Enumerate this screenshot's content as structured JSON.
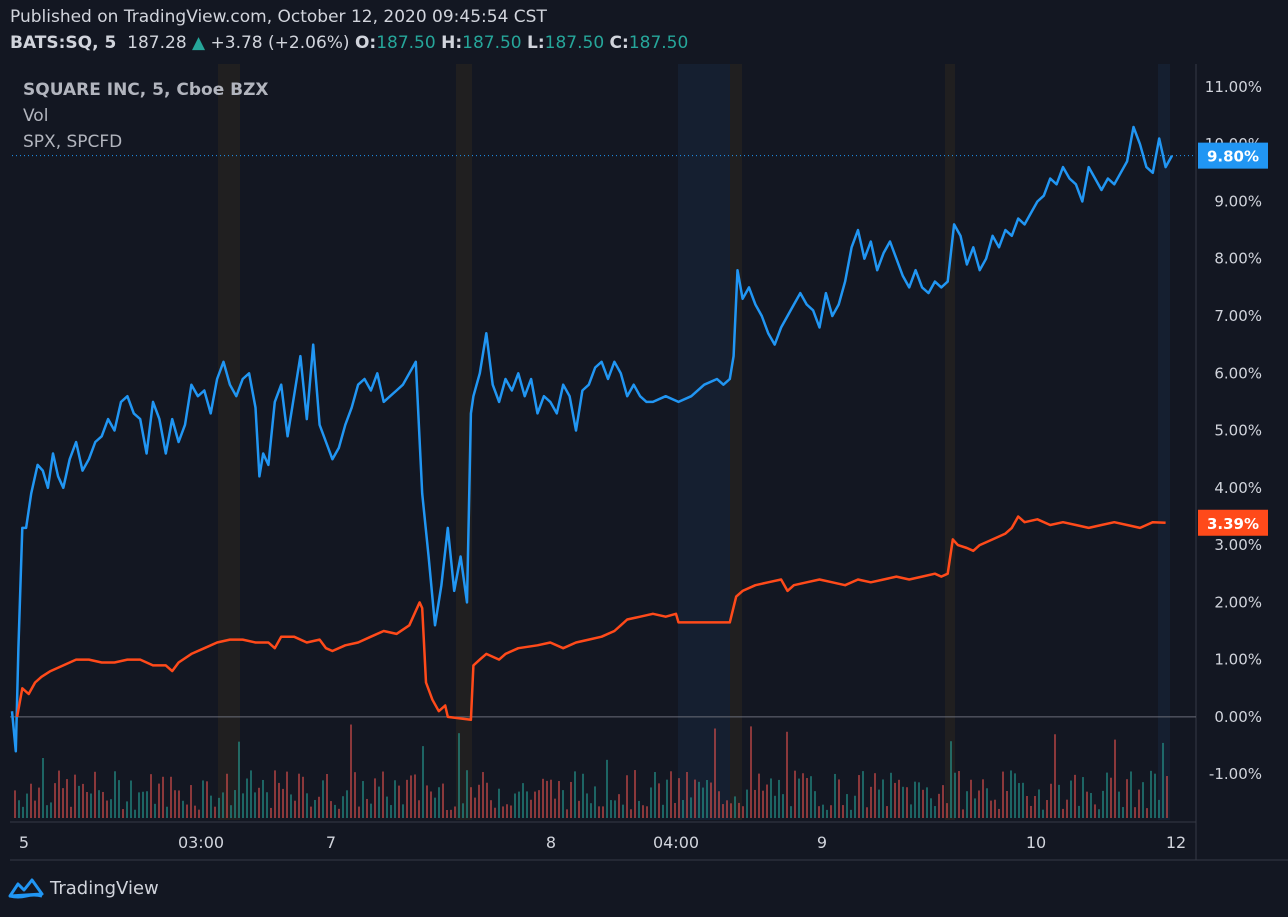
{
  "header": {
    "published": "Published on TradingView.com, October 12, 2020 09:45:54 CST",
    "symbol": "BATS:SQ, 5",
    "last": "187.28",
    "change": "+3.78 (+2.06%)",
    "o_label": "O:",
    "o": "187.50",
    "h_label": "H:",
    "h": "187.50",
    "l_label": "L:",
    "l": "187.50",
    "c_label": "C:",
    "c": "187.50"
  },
  "legend": {
    "main": "SQUARE INC, 5, Cboe BZX",
    "vol": "Vol",
    "compare": "SPX, SPCFD"
  },
  "footer": {
    "brand": "TradingView"
  },
  "colors": {
    "sq": "#2196f3",
    "spx": "#ff4a1a",
    "background": "#131722",
    "axis_text": "#d1d4dc",
    "up_vol": "#26a69a",
    "down_vol": "#ef5350"
  },
  "chart_data": {
    "type": "line",
    "y_unit": "%",
    "ylim": [
      -1.8,
      11.4
    ],
    "y_ticks": [
      "11.00%",
      "10.00%",
      "9.00%",
      "8.00%",
      "7.00%",
      "6.00%",
      "5.00%",
      "4.00%",
      "3.00%",
      "2.00%",
      "1.00%",
      "0.00%",
      "-1.00%"
    ],
    "x_ticks": [
      "5",
      "03:00",
      "7",
      "8",
      "04:00",
      "9",
      "10",
      "12"
    ],
    "last_value_labels": {
      "sq": "9.80%",
      "spx": "3.39%"
    },
    "series": [
      {
        "key": "sq",
        "points": [
          [
            0,
            0.1
          ],
          [
            0.3,
            -0.6
          ],
          [
            0.5,
            1.2
          ],
          [
            0.8,
            3.3
          ],
          [
            1.1,
            3.3
          ],
          [
            1.5,
            3.9
          ],
          [
            2,
            4.4
          ],
          [
            2.4,
            4.3
          ],
          [
            2.8,
            4.0
          ],
          [
            3.2,
            4.6
          ],
          [
            3.6,
            4.2
          ],
          [
            4,
            4.0
          ],
          [
            4.5,
            4.5
          ],
          [
            5,
            4.8
          ],
          [
            5.5,
            4.3
          ],
          [
            6,
            4.5
          ],
          [
            6.5,
            4.8
          ],
          [
            7,
            4.9
          ],
          [
            7.5,
            5.2
          ],
          [
            8,
            5.0
          ],
          [
            8.5,
            5.5
          ],
          [
            9,
            5.6
          ],
          [
            9.5,
            5.3
          ],
          [
            10,
            5.2
          ],
          [
            10.5,
            4.6
          ],
          [
            11,
            5.5
          ],
          [
            11.5,
            5.2
          ],
          [
            12,
            4.6
          ],
          [
            12.5,
            5.2
          ],
          [
            13,
            4.8
          ],
          [
            13.5,
            5.1
          ],
          [
            14,
            5.8
          ],
          [
            14.5,
            5.6
          ],
          [
            15,
            5.7
          ],
          [
            15.5,
            5.3
          ],
          [
            16,
            5.9
          ],
          [
            16.5,
            6.2
          ],
          [
            17,
            5.8
          ],
          [
            17.5,
            5.6
          ],
          [
            18,
            5.9
          ],
          [
            18.5,
            6.0
          ],
          [
            19,
            5.4
          ],
          [
            19.3,
            4.2
          ],
          [
            19.6,
            4.6
          ],
          [
            20,
            4.4
          ],
          [
            20.5,
            5.5
          ],
          [
            21,
            5.8
          ],
          [
            21.5,
            4.9
          ],
          [
            22,
            5.6
          ],
          [
            22.5,
            6.3
          ],
          [
            23,
            5.2
          ],
          [
            23.5,
            6.5
          ],
          [
            24,
            5.1
          ],
          [
            24.5,
            4.8
          ],
          [
            25,
            4.5
          ],
          [
            25.5,
            4.7
          ],
          [
            26,
            5.1
          ],
          [
            26.5,
            5.4
          ],
          [
            27,
            5.8
          ],
          [
            27.5,
            5.9
          ],
          [
            28,
            5.7
          ],
          [
            28.5,
            6.0
          ],
          [
            29,
            5.5
          ],
          [
            29.5,
            5.6
          ],
          [
            30,
            5.7
          ],
          [
            30.5,
            5.8
          ],
          [
            31,
            6.0
          ],
          [
            31.5,
            6.2
          ],
          [
            32,
            3.9
          ],
          [
            32.5,
            2.8
          ],
          [
            33,
            1.6
          ],
          [
            33.5,
            2.3
          ],
          [
            34,
            3.3
          ],
          [
            34.5,
            2.2
          ],
          [
            35,
            2.8
          ],
          [
            35.5,
            2.0
          ],
          [
            35.8,
            5.3
          ],
          [
            36,
            5.6
          ],
          [
            36.5,
            6.0
          ],
          [
            37,
            6.7
          ],
          [
            37.5,
            5.8
          ],
          [
            38,
            5.5
          ],
          [
            38.5,
            5.9
          ],
          [
            39,
            5.7
          ],
          [
            39.5,
            6.0
          ],
          [
            40,
            5.6
          ],
          [
            40.5,
            5.9
          ],
          [
            41,
            5.3
          ],
          [
            41.5,
            5.6
          ],
          [
            42,
            5.5
          ],
          [
            42.5,
            5.3
          ],
          [
            43,
            5.8
          ],
          [
            43.5,
            5.6
          ],
          [
            44,
            5.0
          ],
          [
            44.5,
            5.7
          ],
          [
            45,
            5.8
          ],
          [
            45.5,
            6.1
          ],
          [
            46,
            6.2
          ],
          [
            46.5,
            5.9
          ],
          [
            47,
            6.2
          ],
          [
            47.5,
            6.0
          ],
          [
            48,
            5.6
          ],
          [
            48.5,
            5.8
          ],
          [
            49,
            5.6
          ],
          [
            49.5,
            5.5
          ],
          [
            50,
            5.5
          ],
          [
            51,
            5.6
          ],
          [
            52,
            5.5
          ],
          [
            53,
            5.6
          ],
          [
            54,
            5.8
          ],
          [
            55,
            5.9
          ],
          [
            55.5,
            5.8
          ],
          [
            56,
            5.9
          ],
          [
            56.3,
            6.3
          ],
          [
            56.6,
            7.8
          ],
          [
            57,
            7.3
          ],
          [
            57.5,
            7.5
          ],
          [
            58,
            7.2
          ],
          [
            58.5,
            7.0
          ],
          [
            59,
            6.7
          ],
          [
            59.5,
            6.5
          ],
          [
            60,
            6.8
          ],
          [
            60.5,
            7.0
          ],
          [
            61,
            7.2
          ],
          [
            61.5,
            7.4
          ],
          [
            62,
            7.2
          ],
          [
            62.5,
            7.1
          ],
          [
            63,
            6.8
          ],
          [
            63.5,
            7.4
          ],
          [
            64,
            7.0
          ],
          [
            64.5,
            7.2
          ],
          [
            65,
            7.6
          ],
          [
            65.5,
            8.2
          ],
          [
            66,
            8.5
          ],
          [
            66.5,
            8.0
          ],
          [
            67,
            8.3
          ],
          [
            67.5,
            7.8
          ],
          [
            68,
            8.1
          ],
          [
            68.5,
            8.3
          ],
          [
            69,
            8.0
          ],
          [
            69.5,
            7.7
          ],
          [
            70,
            7.5
          ],
          [
            70.5,
            7.8
          ],
          [
            71,
            7.5
          ],
          [
            71.5,
            7.4
          ],
          [
            72,
            7.6
          ],
          [
            72.5,
            7.5
          ],
          [
            73,
            7.6
          ],
          [
            73.5,
            8.6
          ],
          [
            74,
            8.4
          ],
          [
            74.5,
            7.9
          ],
          [
            75,
            8.2
          ],
          [
            75.5,
            7.8
          ],
          [
            76,
            8.0
          ],
          [
            76.5,
            8.4
          ],
          [
            77,
            8.2
          ],
          [
            77.5,
            8.5
          ],
          [
            78,
            8.4
          ],
          [
            78.5,
            8.7
          ],
          [
            79,
            8.6
          ],
          [
            79.5,
            8.8
          ],
          [
            80,
            9.0
          ],
          [
            80.5,
            9.1
          ],
          [
            81,
            9.4
          ],
          [
            81.5,
            9.3
          ],
          [
            82,
            9.6
          ],
          [
            82.5,
            9.4
          ],
          [
            83,
            9.3
          ],
          [
            83.5,
            9.0
          ],
          [
            84,
            9.6
          ],
          [
            84.5,
            9.4
          ],
          [
            85,
            9.2
          ],
          [
            85.5,
            9.4
          ],
          [
            86,
            9.3
          ],
          [
            86.5,
            9.5
          ],
          [
            87,
            9.7
          ],
          [
            87.5,
            10.3
          ],
          [
            88,
            10.0
          ],
          [
            88.5,
            9.6
          ],
          [
            89,
            9.5
          ],
          [
            89.5,
            10.1
          ],
          [
            90,
            9.6
          ],
          [
            90.5,
            9.8
          ]
        ]
      },
      {
        "key": "spx",
        "points": [
          [
            0.4,
            0.0
          ],
          [
            0.8,
            0.5
          ],
          [
            1.3,
            0.4
          ],
          [
            1.8,
            0.6
          ],
          [
            2.3,
            0.7
          ],
          [
            3,
            0.8
          ],
          [
            4,
            0.9
          ],
          [
            5,
            1.0
          ],
          [
            6,
            1.0
          ],
          [
            7,
            0.95
          ],
          [
            8,
            0.95
          ],
          [
            9,
            1.0
          ],
          [
            10,
            1.0
          ],
          [
            11,
            0.9
          ],
          [
            12,
            0.9
          ],
          [
            12.5,
            0.8
          ],
          [
            13,
            0.95
          ],
          [
            14,
            1.1
          ],
          [
            15,
            1.2
          ],
          [
            16,
            1.3
          ],
          [
            17,
            1.35
          ],
          [
            18,
            1.35
          ],
          [
            19,
            1.3
          ],
          [
            20,
            1.3
          ],
          [
            20.5,
            1.2
          ],
          [
            21,
            1.4
          ],
          [
            22,
            1.4
          ],
          [
            23,
            1.3
          ],
          [
            24,
            1.35
          ],
          [
            24.5,
            1.2
          ],
          [
            25,
            1.15
          ],
          [
            26,
            1.25
          ],
          [
            27,
            1.3
          ],
          [
            28,
            1.4
          ],
          [
            29,
            1.5
          ],
          [
            30,
            1.45
          ],
          [
            31,
            1.6
          ],
          [
            31.8,
            2.0
          ],
          [
            32,
            1.9
          ],
          [
            32.3,
            0.6
          ],
          [
            32.8,
            0.3
          ],
          [
            33.3,
            0.1
          ],
          [
            33.8,
            0.2
          ],
          [
            34,
            0.0
          ],
          [
            35.8,
            -0.05
          ],
          [
            36,
            0.9
          ],
          [
            36.5,
            1.0
          ],
          [
            37,
            1.1
          ],
          [
            38,
            1.0
          ],
          [
            38.5,
            1.1
          ],
          [
            39.5,
            1.2
          ],
          [
            41,
            1.25
          ],
          [
            42,
            1.3
          ],
          [
            43,
            1.2
          ],
          [
            44,
            1.3
          ],
          [
            45,
            1.35
          ],
          [
            46,
            1.4
          ],
          [
            47,
            1.5
          ],
          [
            47.5,
            1.6
          ],
          [
            48,
            1.7
          ],
          [
            49,
            1.75
          ],
          [
            50,
            1.8
          ],
          [
            51,
            1.75
          ],
          [
            51.8,
            1.8
          ],
          [
            52,
            1.65
          ],
          [
            56,
            1.65
          ],
          [
            56.5,
            2.1
          ],
          [
            57,
            2.2
          ],
          [
            58,
            2.3
          ],
          [
            59,
            2.35
          ],
          [
            60,
            2.4
          ],
          [
            60.5,
            2.2
          ],
          [
            61,
            2.3
          ],
          [
            62,
            2.35
          ],
          [
            63,
            2.4
          ],
          [
            64,
            2.35
          ],
          [
            65,
            2.3
          ],
          [
            66,
            2.4
          ],
          [
            67,
            2.35
          ],
          [
            68,
            2.4
          ],
          [
            69,
            2.45
          ],
          [
            70,
            2.4
          ],
          [
            71,
            2.45
          ],
          [
            72,
            2.5
          ],
          [
            72.5,
            2.45
          ],
          [
            73,
            2.5
          ],
          [
            73.4,
            3.1
          ],
          [
            73.8,
            3.0
          ],
          [
            74.5,
            2.95
          ],
          [
            75,
            2.9
          ],
          [
            75.5,
            3.0
          ],
          [
            76.5,
            3.1
          ],
          [
            77.5,
            3.2
          ],
          [
            78,
            3.3
          ],
          [
            78.5,
            3.5
          ],
          [
            79,
            3.4
          ],
          [
            80,
            3.45
          ],
          [
            81,
            3.35
          ],
          [
            82,
            3.4
          ],
          [
            83,
            3.35
          ],
          [
            84,
            3.3
          ],
          [
            85,
            3.35
          ],
          [
            86,
            3.4
          ],
          [
            87,
            3.35
          ],
          [
            88,
            3.3
          ],
          [
            89,
            3.4
          ],
          [
            90,
            3.39
          ]
        ]
      }
    ]
  }
}
